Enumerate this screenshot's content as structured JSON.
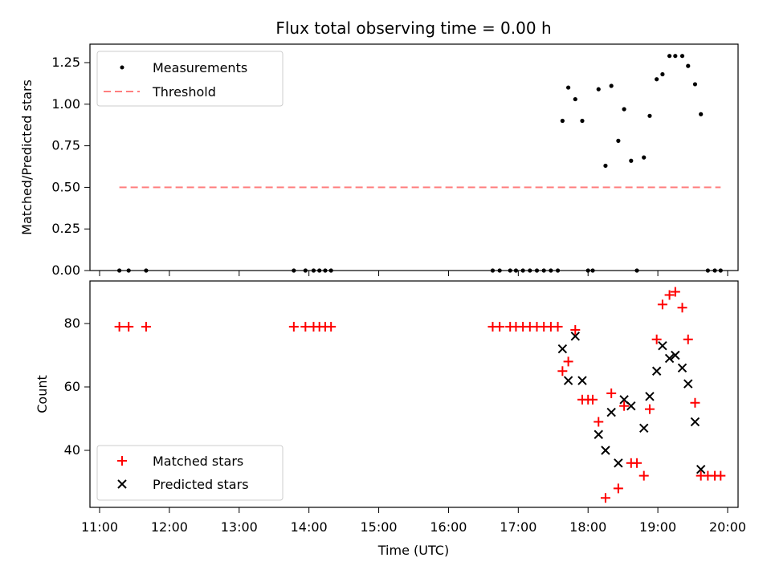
{
  "chart_data": [
    {
      "type": "scatter",
      "title": "Flux total observing time = 0.00 h",
      "xlabel": "",
      "ylabel": "Matched/Predicted stars",
      "xlim": [
        "11:00",
        "20:00"
      ],
      "ylim": [
        0,
        1.35
      ],
      "yticks": [
        0,
        0.25,
        0.5,
        0.75,
        1.0,
        1.25
      ],
      "ytick_labels": [
        "0.00",
        "0.25",
        "0.50",
        "0.75",
        "1.00",
        "1.25"
      ],
      "legend": {
        "placement": "upper-left",
        "entries": [
          "Measurements",
          "Threshold"
        ]
      },
      "series": [
        {
          "name": "Measurements",
          "color": "#000000",
          "marker": "dot",
          "points": [
            [
              "11:17",
              0
            ],
            [
              "11:25",
              0
            ],
            [
              "11:40",
              0
            ],
            [
              "13:47",
              0
            ],
            [
              "13:57",
              0
            ],
            [
              "14:04",
              0
            ],
            [
              "14:09",
              0
            ],
            [
              "14:14",
              0
            ],
            [
              "14:19",
              0
            ],
            [
              "16:38",
              0
            ],
            [
              "16:44",
              0
            ],
            [
              "16:53",
              0
            ],
            [
              "16:58",
              0
            ],
            [
              "17:04",
              0
            ],
            [
              "17:10",
              0
            ],
            [
              "17:16",
              0
            ],
            [
              "17:22",
              0
            ],
            [
              "17:28",
              0
            ],
            [
              "17:34",
              0
            ],
            [
              "17:38",
              0.9
            ],
            [
              "17:43",
              1.1
            ],
            [
              "17:49",
              1.03
            ],
            [
              "17:55",
              0.9
            ],
            [
              "18:00",
              0
            ],
            [
              "18:04",
              0
            ],
            [
              "18:09",
              1.09
            ],
            [
              "18:15",
              0.63
            ],
            [
              "18:20",
              1.11
            ],
            [
              "18:26",
              0.78
            ],
            [
              "18:31",
              0.97
            ],
            [
              "18:37",
              0.66
            ],
            [
              "18:42",
              0
            ],
            [
              "18:48",
              0.68
            ],
            [
              "18:53",
              0.93
            ],
            [
              "18:59",
              1.15
            ],
            [
              "19:04",
              1.18
            ],
            [
              "19:10",
              1.29
            ],
            [
              "19:15",
              1.29
            ],
            [
              "19:21",
              1.29
            ],
            [
              "19:26",
              1.23
            ],
            [
              "19:32",
              1.12
            ],
            [
              "19:37",
              0.94
            ],
            [
              "19:43",
              0
            ],
            [
              "19:49",
              0
            ],
            [
              "19:54",
              0
            ]
          ]
        },
        {
          "name": "Threshold",
          "color": "#ff7f7f",
          "style": "dashed",
          "points": [
            [
              "11:17",
              0.5
            ],
            [
              "19:54",
              0.5
            ]
          ]
        }
      ]
    },
    {
      "type": "scatter",
      "title": "",
      "xlabel": "Time (UTC)",
      "ylabel": "Count",
      "xlim": [
        "11:00",
        "20:00"
      ],
      "xticks": [
        "11:00",
        "12:00",
        "13:00",
        "14:00",
        "15:00",
        "16:00",
        "17:00",
        "18:00",
        "19:00",
        "20:00"
      ],
      "ylim": [
        22,
        93
      ],
      "yticks": [
        40,
        60,
        80
      ],
      "ytick_labels": [
        "40",
        "60",
        "80"
      ],
      "legend": {
        "placement": "lower-left",
        "entries": [
          "Matched stars",
          "Predicted stars"
        ]
      },
      "series": [
        {
          "name": "Matched stars",
          "color": "#ff0000",
          "marker": "plus",
          "points": [
            [
              "11:17",
              79
            ],
            [
              "11:25",
              79
            ],
            [
              "11:40",
              79
            ],
            [
              "13:47",
              79
            ],
            [
              "13:57",
              79
            ],
            [
              "14:04",
              79
            ],
            [
              "14:09",
              79
            ],
            [
              "14:14",
              79
            ],
            [
              "14:19",
              79
            ],
            [
              "16:38",
              79
            ],
            [
              "16:44",
              79
            ],
            [
              "16:53",
              79
            ],
            [
              "16:58",
              79
            ],
            [
              "17:04",
              79
            ],
            [
              "17:10",
              79
            ],
            [
              "17:16",
              79
            ],
            [
              "17:22",
              79
            ],
            [
              "17:28",
              79
            ],
            [
              "17:34",
              79
            ],
            [
              "17:38",
              65
            ],
            [
              "17:43",
              68
            ],
            [
              "17:49",
              78
            ],
            [
              "17:55",
              56
            ],
            [
              "18:00",
              56
            ],
            [
              "18:04",
              56
            ],
            [
              "18:09",
              49
            ],
            [
              "18:15",
              25
            ],
            [
              "18:20",
              58
            ],
            [
              "18:26",
              28
            ],
            [
              "18:31",
              54
            ],
            [
              "18:37",
              36
            ],
            [
              "18:42",
              36
            ],
            [
              "18:48",
              32
            ],
            [
              "18:53",
              53
            ],
            [
              "18:59",
              75
            ],
            [
              "19:04",
              86
            ],
            [
              "19:10",
              89
            ],
            [
              "19:15",
              90
            ],
            [
              "19:21",
              85
            ],
            [
              "19:26",
              75
            ],
            [
              "19:32",
              55
            ],
            [
              "19:37",
              32
            ],
            [
              "19:43",
              32
            ],
            [
              "19:49",
              32
            ],
            [
              "19:54",
              32
            ]
          ]
        },
        {
          "name": "Predicted stars",
          "color": "#000000",
          "marker": "x",
          "points": [
            [
              "17:38",
              72
            ],
            [
              "17:43",
              62
            ],
            [
              "17:49",
              76
            ],
            [
              "17:55",
              62
            ],
            [
              "18:09",
              45
            ],
            [
              "18:15",
              40
            ],
            [
              "18:20",
              52
            ],
            [
              "18:26",
              36
            ],
            [
              "18:31",
              56
            ],
            [
              "18:37",
              54
            ],
            [
              "18:48",
              47
            ],
            [
              "18:53",
              57
            ],
            [
              "18:59",
              65
            ],
            [
              "19:04",
              73
            ],
            [
              "19:10",
              69
            ],
            [
              "19:15",
              70
            ],
            [
              "19:21",
              66
            ],
            [
              "19:26",
              61
            ],
            [
              "19:32",
              49
            ],
            [
              "19:37",
              34
            ]
          ]
        }
      ]
    }
  ]
}
